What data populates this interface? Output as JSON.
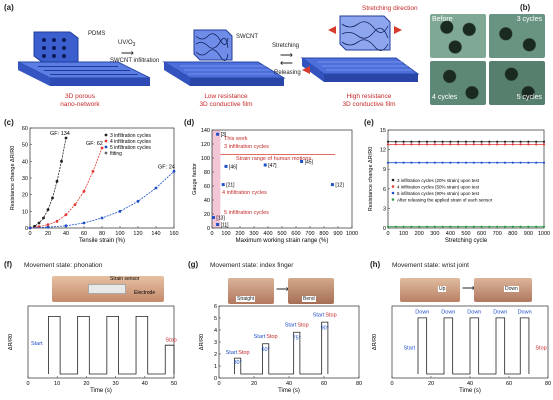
{
  "panels": {
    "a": {
      "letter": "(a)",
      "pdms": "PDMS",
      "swcnt": "SWCNT",
      "uvo3": "UV/O",
      "uvo3_sub": "3",
      "swcnt_infiltration": "SWCNT infiltration",
      "stretching": "Stretching",
      "releasing": "Releasing",
      "stretch_dir": "Stretching direction",
      "caption1_l1": "3D porous",
      "caption1_l2": "nano-network",
      "caption2_l1": "Low resistance",
      "caption2_l2": "3D conductive film",
      "caption3_l1": "High resistance",
      "caption3_l2": "3D conductive film"
    },
    "b": {
      "letter": "(b)",
      "labels": [
        "Before",
        "3 cycles",
        "4 cycles",
        "5 cycles"
      ]
    },
    "c": {
      "letter": "(c)"
    },
    "d": {
      "letter": "(d)"
    },
    "e": {
      "letter": "(e)"
    },
    "f": {
      "letter": "(f)",
      "title": "Movement state: phonation",
      "strain_sensor": "Strain sensor",
      "electrode": "Electrode",
      "start": "Start",
      "stop": "Stop"
    },
    "g": {
      "letter": "(g)",
      "title": "Movement state: index finger",
      "bend": "Bend",
      "straight": "Straight",
      "start": "Start",
      "stop": "Stop",
      "angles": [
        "30°",
        "60°",
        "75°",
        "90°"
      ]
    },
    "h": {
      "letter": "(h)",
      "title": "Movement state: wrist joint",
      "up": "Up",
      "down": "Down",
      "down_label": "Down",
      "start": "Start",
      "stop": "Stop"
    }
  },
  "chart_data": [
    {
      "id": "c",
      "type": "scatter",
      "xlabel": "Tensile strain (%)",
      "ylabel": "Resistance change ΔR/R0",
      "xlim": [
        0,
        160
      ],
      "ylim": [
        0,
        60
      ],
      "xticks": [
        "0",
        "20",
        "40",
        "60",
        "80",
        "100",
        "120",
        "140",
        "160"
      ],
      "yticks": [
        "0",
        "10",
        "20",
        "30",
        "40",
        "50",
        "60"
      ],
      "legend": [
        "3 infiltration cycles",
        "4 infiltration cycles",
        "5 infiltration cycles",
        "fitting"
      ],
      "series": [
        {
          "name": "3 infiltration cycles",
          "color": "#222222",
          "gf_label": "GF: 134",
          "x": [
            0,
            5,
            10,
            15,
            20,
            25,
            30,
            35,
            40
          ],
          "y": [
            0,
            1,
            3,
            6,
            11,
            18,
            28,
            40,
            54
          ]
        },
        {
          "name": "4 infiltration cycles",
          "color": "#e53935",
          "gf_label": "GF: 62",
          "x": [
            0,
            10,
            20,
            30,
            40,
            50,
            60,
            70,
            80
          ],
          "y": [
            0,
            0.8,
            2,
            4,
            8,
            14,
            22,
            34,
            48
          ]
        },
        {
          "name": "5 infiltration cycles",
          "color": "#1e4fc8",
          "gf_label": "GF: 24",
          "x": [
            0,
            20,
            40,
            60,
            80,
            100,
            120,
            140,
            160
          ],
          "y": [
            0,
            0.5,
            1.3,
            3,
            6,
            10,
            16,
            24,
            34
          ]
        }
      ]
    },
    {
      "id": "d",
      "type": "scatter",
      "xlabel": "Maximum working strain range (%)",
      "ylabel": "Gauge factor",
      "xlim": [
        0,
        1000
      ],
      "ylim": [
        0,
        140
      ],
      "xticks": [
        "0",
        "100",
        "200",
        "300",
        "400",
        "500",
        "600",
        "700",
        "800",
        "900",
        "1000"
      ],
      "yticks": [
        "0",
        "20",
        "40",
        "60",
        "80",
        "100",
        "120",
        "140"
      ],
      "annotations": [
        "This work",
        "3 infiltration cycles",
        "Strain range of human motions",
        "4 infiltration cycles",
        "5 infiltration cycles"
      ],
      "points": [
        {
          "label": "[3]",
          "x": 40,
          "y": 134
        },
        {
          "label": "[46]",
          "x": 100,
          "y": 88
        },
        {
          "label": "[47]",
          "x": 380,
          "y": 90
        },
        {
          "label": "[45]",
          "x": 640,
          "y": 95
        },
        {
          "label": "[21]",
          "x": 80,
          "y": 62
        },
        {
          "label": "[12]",
          "x": 860,
          "y": 62
        },
        {
          "label": "[13]",
          "x": 10,
          "y": 15
        },
        {
          "label": "[11]",
          "x": 40,
          "y": 5
        }
      ]
    },
    {
      "id": "e",
      "type": "line",
      "xlabel": "Stretching cycle",
      "ylabel": "Resistance change ΔR/R0",
      "xlim": [
        0,
        1000
      ],
      "ylim": [
        0,
        15
      ],
      "xticks": [
        "0",
        "100",
        "200",
        "300",
        "400",
        "500",
        "600",
        "700",
        "800",
        "900",
        "1000"
      ],
      "yticks": [
        "0",
        "3",
        "6",
        "9",
        "12",
        "15"
      ],
      "legend": [
        "3 infiltration cycles (20% strain) upon test",
        "4 infiltration cycles (50% strain) upon test",
        "5 infiltration cycles (90% strain) upon test",
        "After releasing the applied strain of each sensor"
      ],
      "series": [
        {
          "name": "3 infiltration cycles (20% strain) upon test",
          "color": "#222222",
          "value": 13.2
        },
        {
          "name": "4 infiltration cycles (50% strain) upon test",
          "color": "#e53935",
          "value": 12.8
        },
        {
          "name": "5 infiltration cycles (90% strain) upon test",
          "color": "#1e4fc8",
          "value": 10.0
        },
        {
          "name": "After releasing the applied strain of each sensor",
          "color": "#2e9e4a",
          "value": 0.2
        }
      ]
    },
    {
      "id": "f",
      "type": "line",
      "xlabel": "Time (s)",
      "ylabel": "ΔR/R0",
      "xlim": [
        0,
        50
      ],
      "xticks": [
        "0",
        "10",
        "20",
        "30",
        "40",
        "50"
      ]
    },
    {
      "id": "g",
      "type": "line",
      "xlabel": "Time (s)",
      "ylabel": "ΔR/R0",
      "xlim": [
        0,
        90
      ],
      "xticks": [
        "0",
        "20",
        "40",
        "60",
        "80"
      ],
      "yticks": [
        "0",
        "1",
        "2",
        "3",
        "4",
        "5",
        "6"
      ]
    },
    {
      "id": "h",
      "type": "line",
      "xlabel": "Time (s)",
      "ylabel": "ΔR/R0",
      "xlim": [
        0,
        90
      ],
      "xticks": [
        "0",
        "20",
        "40",
        "60",
        "80"
      ]
    }
  ]
}
